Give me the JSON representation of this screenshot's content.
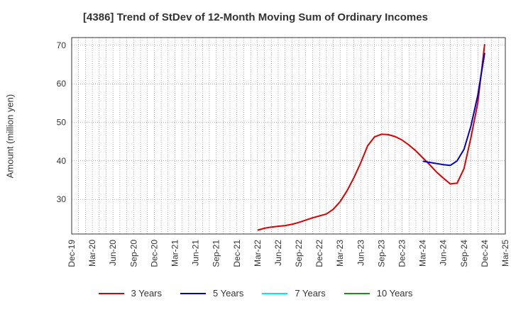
{
  "chart_data": {
    "type": "line",
    "title": "[4386]  Trend of StDev of 12-Month Moving Sum of Ordinary Incomes",
    "ylabel": "Amount (million yen)",
    "xlabel": "",
    "ylim": [
      21,
      72
    ],
    "yticks": [
      30,
      40,
      50,
      60,
      70
    ],
    "x_tick_labels": [
      "Dec-19",
      "Mar-20",
      "Jun-20",
      "Sep-20",
      "Dec-20",
      "Mar-21",
      "Jun-21",
      "Sep-21",
      "Dec-21",
      "Mar-22",
      "Jun-22",
      "Sep-22",
      "Dec-22",
      "Mar-23",
      "Jun-23",
      "Sep-23",
      "Dec-23",
      "Mar-24",
      "Jun-24",
      "Sep-24",
      "Dec-24",
      "Mar-25"
    ],
    "grid": true,
    "legend_position": "bottom",
    "series": [
      {
        "name": "3 Years",
        "color": "#dd0000",
        "x": [
          "Mar-22",
          "Apr-22",
          "May-22",
          "Jun-22",
          "Jul-22",
          "Aug-22",
          "Sep-22",
          "Oct-22",
          "Nov-22",
          "Dec-22",
          "Jan-23",
          "Feb-23",
          "Mar-23",
          "Apr-23",
          "May-23",
          "Jun-23",
          "Jul-23",
          "Aug-23",
          "Sep-23",
          "Oct-23",
          "Nov-23",
          "Dec-23",
          "Jan-24",
          "Feb-24",
          "Mar-24",
          "Apr-24",
          "May-24",
          "Jun-24",
          "Jul-24",
          "Aug-24",
          "Sep-24",
          "Oct-24",
          "Nov-24",
          "Dec-24"
        ],
        "values": [
          22.0,
          22.5,
          22.8,
          23.0,
          23.2,
          23.5,
          24.0,
          24.6,
          25.2,
          25.7,
          26.2,
          27.4,
          29.4,
          32.2,
          35.6,
          39.5,
          43.9,
          46.2,
          46.9,
          46.8,
          46.3,
          45.4,
          44.1,
          42.6,
          40.8,
          39.0,
          37.1,
          35.5,
          34.0,
          34.2,
          38.0,
          46.0,
          55.0,
          70.3
        ]
      },
      {
        "name": "5 Years",
        "color": "#0000cc",
        "x": [
          "Mar-24",
          "Apr-24",
          "May-24",
          "Jun-24",
          "Jul-24",
          "Aug-24",
          "Sep-24",
          "Oct-24",
          "Nov-24",
          "Dec-24"
        ],
        "values": [
          39.9,
          39.6,
          39.3,
          39.0,
          38.8,
          40.0,
          43.0,
          49.0,
          57.0,
          68.0
        ]
      },
      {
        "name": "7 Years",
        "color": "#00e5ee",
        "x": [],
        "values": []
      },
      {
        "name": "10 Years",
        "color": "#228b22",
        "x": [],
        "values": []
      }
    ]
  }
}
